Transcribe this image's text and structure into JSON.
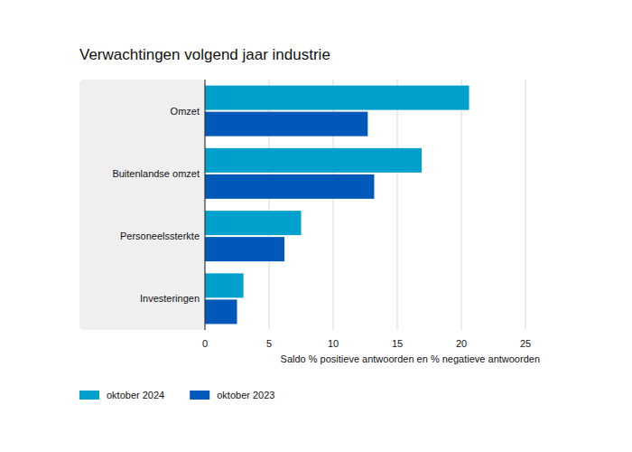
{
  "chart_data": {
    "type": "bar",
    "orientation": "horizontal",
    "title": "Verwachtingen volgend jaar industrie",
    "x_label": "Saldo % positieve antwoorden en % negatieve antwoorden",
    "categories": [
      "Omzet",
      "Buitenlandse omzet",
      "Personeelssterkte",
      "Investeringen"
    ],
    "series": [
      {
        "name": "oktober 2024",
        "color": "#00a0cc",
        "values": [
          20.6,
          16.9,
          7.5,
          3.0
        ]
      },
      {
        "name": "oktober 2023",
        "color": "#0058b8",
        "values": [
          12.7,
          13.2,
          6.2,
          2.5
        ]
      }
    ],
    "xlim": [
      0,
      25
    ],
    "xticks": [
      0,
      5,
      10,
      15,
      20,
      25
    ],
    "grid": true,
    "legend": "bottom-left"
  }
}
